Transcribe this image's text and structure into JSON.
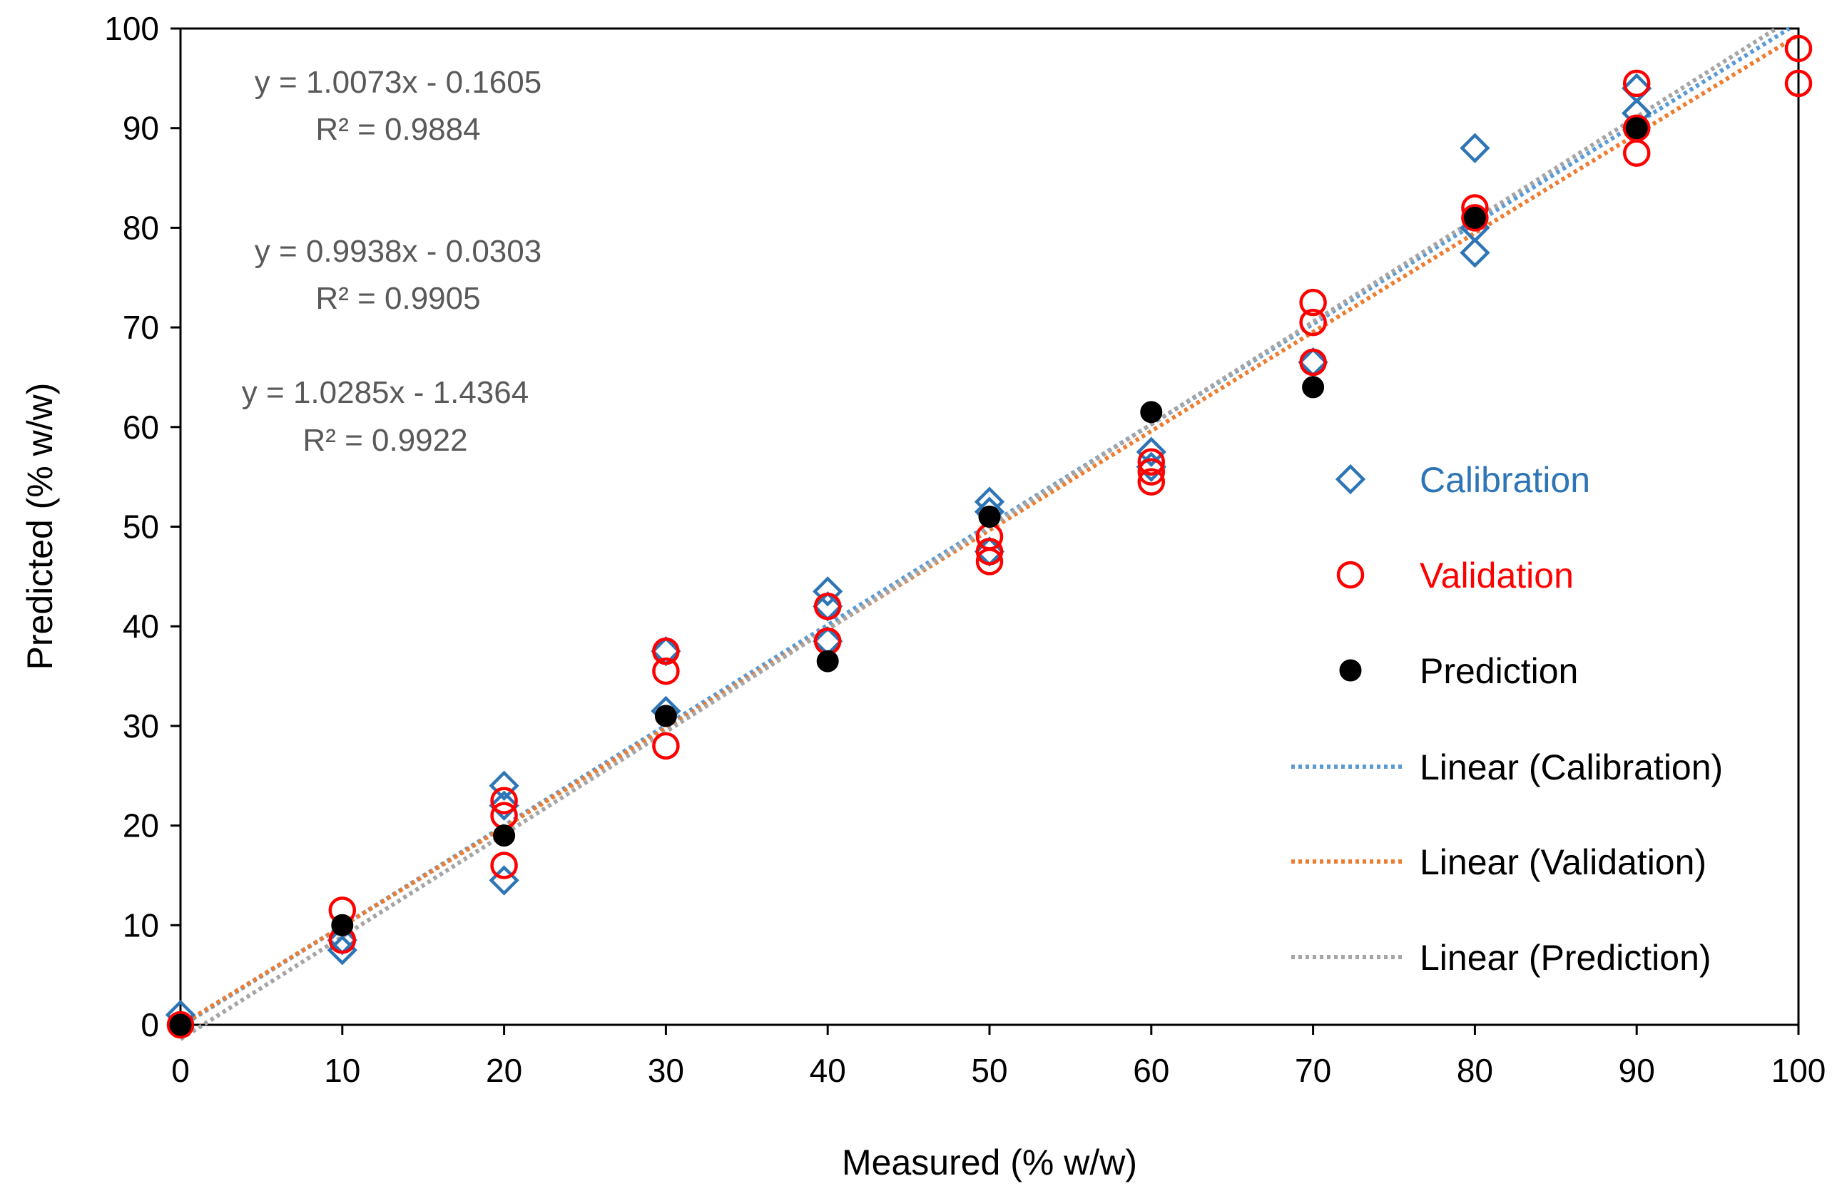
{
  "chart_data": {
    "type": "scatter",
    "xlabel": "Measured  (% w/w)",
    "ylabel": "Predicted  (% w/w)",
    "xlim": [
      0,
      100
    ],
    "ylim": [
      0,
      100
    ],
    "xticks": [
      0,
      10,
      20,
      30,
      40,
      50,
      60,
      70,
      80,
      90,
      100
    ],
    "yticks": [
      0,
      10,
      20,
      30,
      40,
      50,
      60,
      70,
      80,
      90,
      100
    ],
    "grid": false,
    "legend_position": "right",
    "series": [
      {
        "name": "Calibration",
        "marker": "diamond-open",
        "color": "#2e75b6",
        "points": [
          [
            0,
            1.0
          ],
          [
            10,
            7.5
          ],
          [
            10,
            8.5
          ],
          [
            20,
            14.5
          ],
          [
            20,
            22.0
          ],
          [
            20,
            24.0
          ],
          [
            30,
            31.5
          ],
          [
            30,
            37.5
          ],
          [
            40,
            38.5
          ],
          [
            40,
            42.0
          ],
          [
            40,
            43.5
          ],
          [
            50,
            47.5
          ],
          [
            50,
            51.5
          ],
          [
            50,
            52.5
          ],
          [
            60,
            56.0
          ],
          [
            60,
            57.5
          ],
          [
            70,
            66.5
          ],
          [
            80,
            77.5
          ],
          [
            80,
            80.0
          ],
          [
            80,
            88.0
          ],
          [
            90,
            91.5
          ],
          [
            90,
            94.0
          ]
        ]
      },
      {
        "name": "Validation",
        "marker": "circle-open",
        "color": "#ff0000",
        "points": [
          [
            0,
            0.0
          ],
          [
            10,
            8.5
          ],
          [
            10,
            11.5
          ],
          [
            20,
            16.0
          ],
          [
            20,
            21.0
          ],
          [
            20,
            22.5
          ],
          [
            30,
            28.0
          ],
          [
            30,
            35.5
          ],
          [
            30,
            37.5
          ],
          [
            40,
            38.5
          ],
          [
            40,
            42.0
          ],
          [
            50,
            46.5
          ],
          [
            50,
            47.5
          ],
          [
            50,
            49.0
          ],
          [
            60,
            54.5
          ],
          [
            60,
            55.5
          ],
          [
            60,
            56.5
          ],
          [
            70,
            66.5
          ],
          [
            70,
            70.5
          ],
          [
            70,
            72.5
          ],
          [
            80,
            81.0
          ],
          [
            80,
            82.0
          ],
          [
            90,
            87.5
          ],
          [
            90,
            90.0
          ],
          [
            90,
            94.5
          ],
          [
            100,
            94.5
          ],
          [
            100,
            98.0
          ]
        ]
      },
      {
        "name": "Prediction",
        "marker": "circle-filled",
        "color": "#000000",
        "points": [
          [
            0,
            0.0
          ],
          [
            10,
            10.0
          ],
          [
            20,
            19.0
          ],
          [
            30,
            31.0
          ],
          [
            40,
            36.5
          ],
          [
            50,
            51.0
          ],
          [
            60,
            61.5
          ],
          [
            70,
            64.0
          ],
          [
            80,
            81.0
          ],
          [
            90,
            90.0
          ]
        ]
      }
    ],
    "trendlines": [
      {
        "name": "Linear (Calibration)",
        "slope": 1.0073,
        "intercept": -0.1605,
        "color": "#5b9bd5"
      },
      {
        "name": "Linear (Validation)",
        "slope": 0.9938,
        "intercept": -0.0303,
        "color": "#ed7d31"
      },
      {
        "name": "Linear (Prediction)",
        "slope": 1.0285,
        "intercept": -1.4364,
        "color": "#a5a5a5"
      }
    ],
    "annotations": [
      {
        "equation": "y = 1.0073x - 0.1605",
        "r2": "R² = 0.9884"
      },
      {
        "equation": "y = 0.9938x - 0.0303",
        "r2": "R² = 0.9905"
      },
      {
        "equation": "y = 1.0285x - 1.4364",
        "r2": "R² = 0.9922"
      }
    ],
    "legend": [
      {
        "label": "Calibration",
        "type": "marker",
        "series": 0,
        "color": "#2e75b6"
      },
      {
        "label": "Validation",
        "type": "marker",
        "series": 1,
        "color": "#ff0000"
      },
      {
        "label": "Prediction",
        "type": "marker",
        "series": 2,
        "color": "#000000"
      },
      {
        "label": "Linear (Calibration)",
        "type": "line",
        "trend": 0,
        "color": "#000000"
      },
      {
        "label": "Linear (Validation)",
        "type": "line",
        "trend": 1,
        "color": "#000000"
      },
      {
        "label": "Linear (Prediction)",
        "type": "line",
        "trend": 2,
        "color": "#000000"
      }
    ]
  }
}
